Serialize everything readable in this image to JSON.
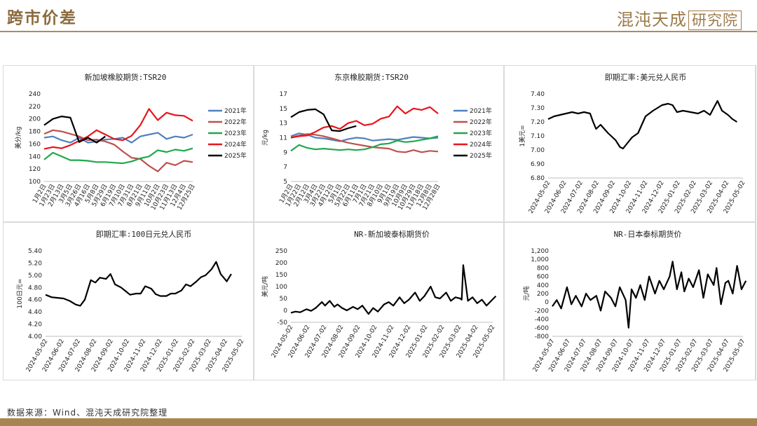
{
  "header": {
    "title": "跨市价差",
    "logo_main": "混沌天成",
    "logo_box": "研究院"
  },
  "footer": {
    "source": "数据来源：Wind、混沌天成研究院整理"
  },
  "colors": {
    "y2021": "#4f81bd",
    "y2022": "#c0504d",
    "y2023": "#1fa84b",
    "y2024": "#e8141b",
    "y2025": "#000000",
    "accent": "#a88453"
  },
  "chart_data": [
    {
      "id": "sg-tsr20",
      "type": "line",
      "title": "新加坡橡胶期货:TSR20",
      "ylabel": "美分/kg",
      "ylim": [
        100,
        240
      ],
      "yticks": [
        "100",
        "120",
        "140",
        "160",
        "180",
        "200",
        "220",
        "240"
      ],
      "xtick_labels": [
        "1月2日",
        "1月23日",
        "2月13日",
        "3月5日",
        "3月26日",
        "4月16日",
        "5月8日",
        "5月29日",
        "6月19日",
        "7月10日",
        "7月31日",
        "8月21日",
        "9月11日",
        "10月2日",
        "10月23日",
        "11月13日",
        "12月4日",
        "12月25日"
      ],
      "x_count": 17,
      "legend": [
        "2021年",
        "2022年",
        "2023年",
        "2024年",
        "2025年"
      ],
      "series": [
        {
          "name": "2021年",
          "color": "#4f81bd",
          "x": [
            0,
            1,
            2,
            3,
            4,
            5,
            6,
            7,
            8,
            9,
            10,
            11,
            12,
            13,
            14,
            15,
            16,
            17
          ],
          "values": [
            170,
            172,
            166,
            162,
            170,
            162,
            164,
            167,
            168,
            170,
            162,
            172,
            175,
            178,
            168,
            172,
            170,
            175
          ]
        },
        {
          "name": "2022年",
          "color": "#c0504d",
          "x": [
            0,
            1,
            2,
            3,
            4,
            5,
            6,
            7,
            8,
            9,
            10,
            11,
            12,
            13,
            14,
            15,
            16,
            17
          ],
          "values": [
            176,
            182,
            180,
            176,
            172,
            166,
            167,
            164,
            159,
            148,
            138,
            136,
            125,
            116,
            130,
            126,
            133,
            131
          ]
        },
        {
          "name": "2023年",
          "color": "#1fa84b",
          "x": [
            0,
            1,
            2,
            3,
            4,
            5,
            6,
            7,
            8,
            9,
            10,
            11,
            12,
            13,
            14,
            15,
            16,
            17
          ],
          "values": [
            135,
            146,
            140,
            134,
            134,
            133,
            131,
            131,
            130,
            129,
            132,
            137,
            140,
            150,
            147,
            151,
            149,
            153
          ]
        },
        {
          "name": "2024年",
          "color": "#e8141b",
          "x": [
            0,
            1,
            2,
            3,
            4,
            5,
            6,
            7,
            8,
            9,
            10,
            11,
            12,
            13,
            14,
            15,
            16,
            17
          ],
          "values": [
            152,
            155,
            153,
            158,
            165,
            172,
            182,
            175,
            168,
            166,
            173,
            190,
            216,
            198,
            210,
            206,
            205,
            197
          ]
        },
        {
          "name": "2025年",
          "color": "#000000",
          "x": [
            0,
            1,
            2,
            3,
            4,
            5,
            6,
            7
          ],
          "values": [
            190,
            200,
            204,
            202,
            163,
            170,
            162,
            172
          ]
        }
      ]
    },
    {
      "id": "jp-tsr20",
      "type": "line",
      "title": "东京橡胶期货:TSR20",
      "ylabel": "元/kg",
      "ylim": [
        5,
        17
      ],
      "yticks": [
        "5",
        "7",
        "9",
        "11",
        "13",
        "15",
        "17"
      ],
      "xtick_labels": [
        "1月2日",
        "1月22日",
        "2月12日",
        "3月4日",
        "3月22日",
        "4月12日",
        "5月1日",
        "5月22日",
        "6月11日",
        "7月1日",
        "7月21日",
        "8月10日",
        "9月1日",
        "9月19日",
        "10月9日",
        "10月29日",
        "11月18日",
        "12月8日",
        "12月28日"
      ],
      "x_count": 18,
      "legend": [
        "2021年",
        "2022年",
        "2023年",
        "2024年",
        "2025年"
      ],
      "series": [
        {
          "name": "2021年",
          "color": "#4f81bd",
          "x": [
            0,
            1,
            2,
            3,
            4,
            5,
            6,
            7,
            8,
            9,
            10,
            11,
            12,
            13,
            14,
            15,
            16,
            17,
            18
          ],
          "values": [
            11.2,
            11.6,
            11.4,
            11.0,
            10.9,
            10.7,
            10.5,
            10.8,
            11.0,
            10.9,
            10.6,
            10.7,
            10.8,
            10.7,
            10.9,
            11.1,
            11.0,
            10.9,
            11.0
          ]
        },
        {
          "name": "2022年",
          "color": "#c0504d",
          "x": [
            0,
            1,
            2,
            3,
            4,
            5,
            6,
            7,
            8,
            9,
            10,
            11,
            12,
            13,
            14,
            15,
            16,
            17,
            18
          ],
          "values": [
            11.0,
            11.3,
            11.5,
            11.4,
            11.2,
            10.9,
            10.6,
            10.3,
            10.1,
            9.9,
            9.7,
            9.6,
            9.5,
            9.1,
            9.0,
            9.3,
            9.0,
            9.2,
            9.1
          ]
        },
        {
          "name": "2023年",
          "color": "#1fa84b",
          "x": [
            0,
            1,
            2,
            3,
            4,
            5,
            6,
            7,
            8,
            9,
            10,
            11,
            12,
            13,
            14,
            15,
            16,
            17,
            18
          ],
          "values": [
            9.2,
            10.0,
            9.6,
            9.4,
            9.5,
            9.4,
            9.3,
            9.4,
            9.3,
            9.4,
            9.7,
            10.1,
            10.2,
            10.6,
            10.4,
            10.5,
            10.7,
            10.9,
            11.2
          ]
        },
        {
          "name": "2024年",
          "color": "#e8141b",
          "x": [
            0,
            1,
            2,
            3,
            4,
            5,
            6,
            7,
            8,
            9,
            10,
            11,
            12,
            13,
            14,
            15,
            16,
            17,
            18
          ],
          "values": [
            11.0,
            11.2,
            11.3,
            11.8,
            12.4,
            12.6,
            12.2,
            13.0,
            13.3,
            12.7,
            12.9,
            13.6,
            13.9,
            15.3,
            14.3,
            15.0,
            14.8,
            15.2,
            14.3
          ]
        },
        {
          "name": "2025年",
          "color": "#000000",
          "x": [
            0,
            1,
            2,
            3,
            4,
            5,
            6,
            7,
            8
          ],
          "values": [
            13.8,
            14.5,
            14.8,
            14.9,
            14.2,
            12.0,
            11.9,
            12.3,
            12.6
          ]
        }
      ]
    },
    {
      "id": "usdcny",
      "type": "line",
      "title": "即期汇率:美元兑人民币",
      "ylabel": "1美元=",
      "ylim": [
        6.8,
        7.4
      ],
      "yticks": [
        "6.80",
        "6.90",
        "7.00",
        "7.10",
        "7.20",
        "7.30",
        "7.40"
      ],
      "xtick_labels": [
        "2024-05-02",
        "2024-06-02",
        "2024-07-02",
        "2024-08-02",
        "2024-09-02",
        "2024-10-02",
        "2024-11-02",
        "2024-12-02",
        "2025-01-02",
        "2025-02-02",
        "2025-03-02",
        "2025-04-02",
        "2025-05-02"
      ],
      "x_count": 13,
      "series": [
        {
          "name": "",
          "color": "#000000",
          "x": [
            0,
            0.4,
            0.8,
            1.2,
            1.6,
            2,
            2.4,
            2.8,
            3,
            3.2,
            3.5,
            4,
            4.2,
            4.5,
            4.8,
            5,
            5.3,
            5.6,
            6,
            6.5,
            7,
            7.3,
            7.6,
            8,
            8.3,
            8.6,
            9,
            9.5,
            10,
            10.4,
            10.8,
            11,
            11.3,
            11.6,
            12,
            12.3,
            12.6
          ],
          "values": [
            7.22,
            7.24,
            7.25,
            7.26,
            7.27,
            7.26,
            7.27,
            7.26,
            7.2,
            7.15,
            7.18,
            7.12,
            7.1,
            7.07,
            7.02,
            7.01,
            7.05,
            7.09,
            7.12,
            7.24,
            7.28,
            7.3,
            7.32,
            7.33,
            7.32,
            7.27,
            7.28,
            7.27,
            7.26,
            7.28,
            7.25,
            7.29,
            7.35,
            7.28,
            7.25,
            7.22,
            7.2
          ]
        }
      ]
    },
    {
      "id": "jpycny",
      "type": "line",
      "title": "即期汇率:100日元兑人民币",
      "ylabel": "100日元=",
      "ylim": [
        4.0,
        5.4
      ],
      "yticks": [
        "4.00",
        "4.20",
        "4.40",
        "4.60",
        "4.80",
        "5.00",
        "5.20",
        "5.40"
      ],
      "xtick_labels": [
        "2024-05-02",
        "2024-06-02",
        "2024-07-02",
        "2024-08-02",
        "2024-09-02",
        "2024-10-02",
        "2024-11-02",
        "2024-12-02",
        "2025-01-02",
        "2025-02-02",
        "2025-03-02",
        "2025-04-02",
        "2025-05-02"
      ],
      "x_count": 13,
      "series": [
        {
          "name": "",
          "color": "#000000",
          "x": [
            0,
            0.4,
            0.8,
            1.2,
            1.6,
            2,
            2.3,
            2.6,
            3,
            3.3,
            3.6,
            4,
            4.3,
            4.6,
            5,
            5.3,
            5.6,
            6,
            6.3,
            6.6,
            7,
            7.3,
            7.6,
            8,
            8.3,
            8.6,
            9,
            9.3,
            9.6,
            10,
            10.3,
            10.6,
            11,
            11.3,
            11.6,
            12,
            12.3
          ],
          "values": [
            4.68,
            4.64,
            4.63,
            4.62,
            4.58,
            4.52,
            4.5,
            4.6,
            4.92,
            4.88,
            4.96,
            4.94,
            5.02,
            4.85,
            4.8,
            4.74,
            4.68,
            4.7,
            4.7,
            4.82,
            4.78,
            4.69,
            4.66,
            4.66,
            4.7,
            4.7,
            4.75,
            4.85,
            4.82,
            4.9,
            4.97,
            5.0,
            5.1,
            5.22,
            5.02,
            4.9,
            5.02
          ]
        }
      ]
    },
    {
      "id": "nr-sg",
      "type": "line",
      "title": "NR-新加坡泰标期货价",
      "ylabel": "美元/吨",
      "ylim": [
        -50,
        250
      ],
      "yticks": [
        "-50",
        "0",
        "50",
        "100",
        "150",
        "200",
        "250"
      ],
      "xtick_labels": [
        "2024-05-02",
        "2024-06-02",
        "2024-07-02",
        "2024-08-02",
        "2024-09-02",
        "2024-10-02",
        "2024-11-02",
        "2024-12-02",
        "2025-01-02",
        "2025-02-02",
        "2025-03-02",
        "2025-04-02",
        "2025-05-02"
      ],
      "x_count": 13,
      "series": [
        {
          "name": "",
          "color": "#000000",
          "x": [
            0,
            0.3,
            0.6,
            1,
            1.3,
            1.6,
            2,
            2.2,
            2.5,
            2.8,
            3,
            3.3,
            3.6,
            4,
            4.3,
            4.6,
            5,
            5.3,
            5.6,
            6,
            6.3,
            6.6,
            7,
            7.3,
            7.6,
            8,
            8.3,
            8.6,
            9,
            9.3,
            9.6,
            10,
            10.3,
            10.6,
            10.9,
            11,
            11.1,
            11.4,
            11.7,
            12,
            12.3,
            12.6,
            12.9,
            13.2
          ],
          "values": [
            -10,
            -5,
            -8,
            5,
            -2,
            10,
            35,
            20,
            40,
            15,
            25,
            10,
            0,
            15,
            5,
            20,
            -15,
            10,
            -5,
            25,
            35,
            20,
            55,
            30,
            45,
            75,
            40,
            60,
            100,
            55,
            50,
            75,
            40,
            55,
            50,
            45,
            190,
            40,
            55,
            30,
            45,
            20,
            40,
            60
          ]
        }
      ]
    },
    {
      "id": "nr-jp",
      "type": "line",
      "title": "NR-日本泰标期货价",
      "ylabel": "元/吨",
      "ylim": [
        -800,
        1200
      ],
      "yticks": [
        "-800",
        "-600",
        "-400",
        "-200",
        "0",
        "200",
        "400",
        "600",
        "800",
        "1,000",
        "1,200"
      ],
      "xtick_labels": [
        "2024-05-07",
        "2024-06-07",
        "2024-07-07",
        "2024-08-07",
        "2024-09-07",
        "2024-10-07",
        "2024-11-07",
        "2024-12-07",
        "2025-01-07",
        "2025-02-07",
        "2025-03-07",
        "2025-04-07",
        "2025-05-07"
      ],
      "x_count": 13,
      "series": [
        {
          "name": "",
          "color": "#000000",
          "x": [
            0,
            0.3,
            0.6,
            1,
            1.3,
            1.6,
            2,
            2.3,
            2.6,
            3,
            3.3,
            3.6,
            4,
            4.3,
            4.6,
            5,
            5.2,
            5.4,
            5.7,
            6,
            6.3,
            6.6,
            7,
            7.3,
            7.6,
            8,
            8.2,
            8.5,
            8.8,
            9,
            9.3,
            9.6,
            10,
            10.3,
            10.6,
            11,
            11.2,
            11.5,
            11.8,
            12,
            12.3,
            12.6,
            12.9,
            13.2
          ],
          "values": [
            -100,
            50,
            -150,
            350,
            -50,
            150,
            -100,
            200,
            50,
            150,
            -200,
            250,
            100,
            -100,
            350,
            50,
            -600,
            300,
            100,
            400,
            50,
            600,
            200,
            500,
            300,
            600,
            950,
            300,
            700,
            250,
            550,
            350,
            750,
            100,
            650,
            400,
            800,
            -50,
            450,
            500,
            200,
            850,
            300,
            500
          ]
        }
      ]
    }
  ]
}
